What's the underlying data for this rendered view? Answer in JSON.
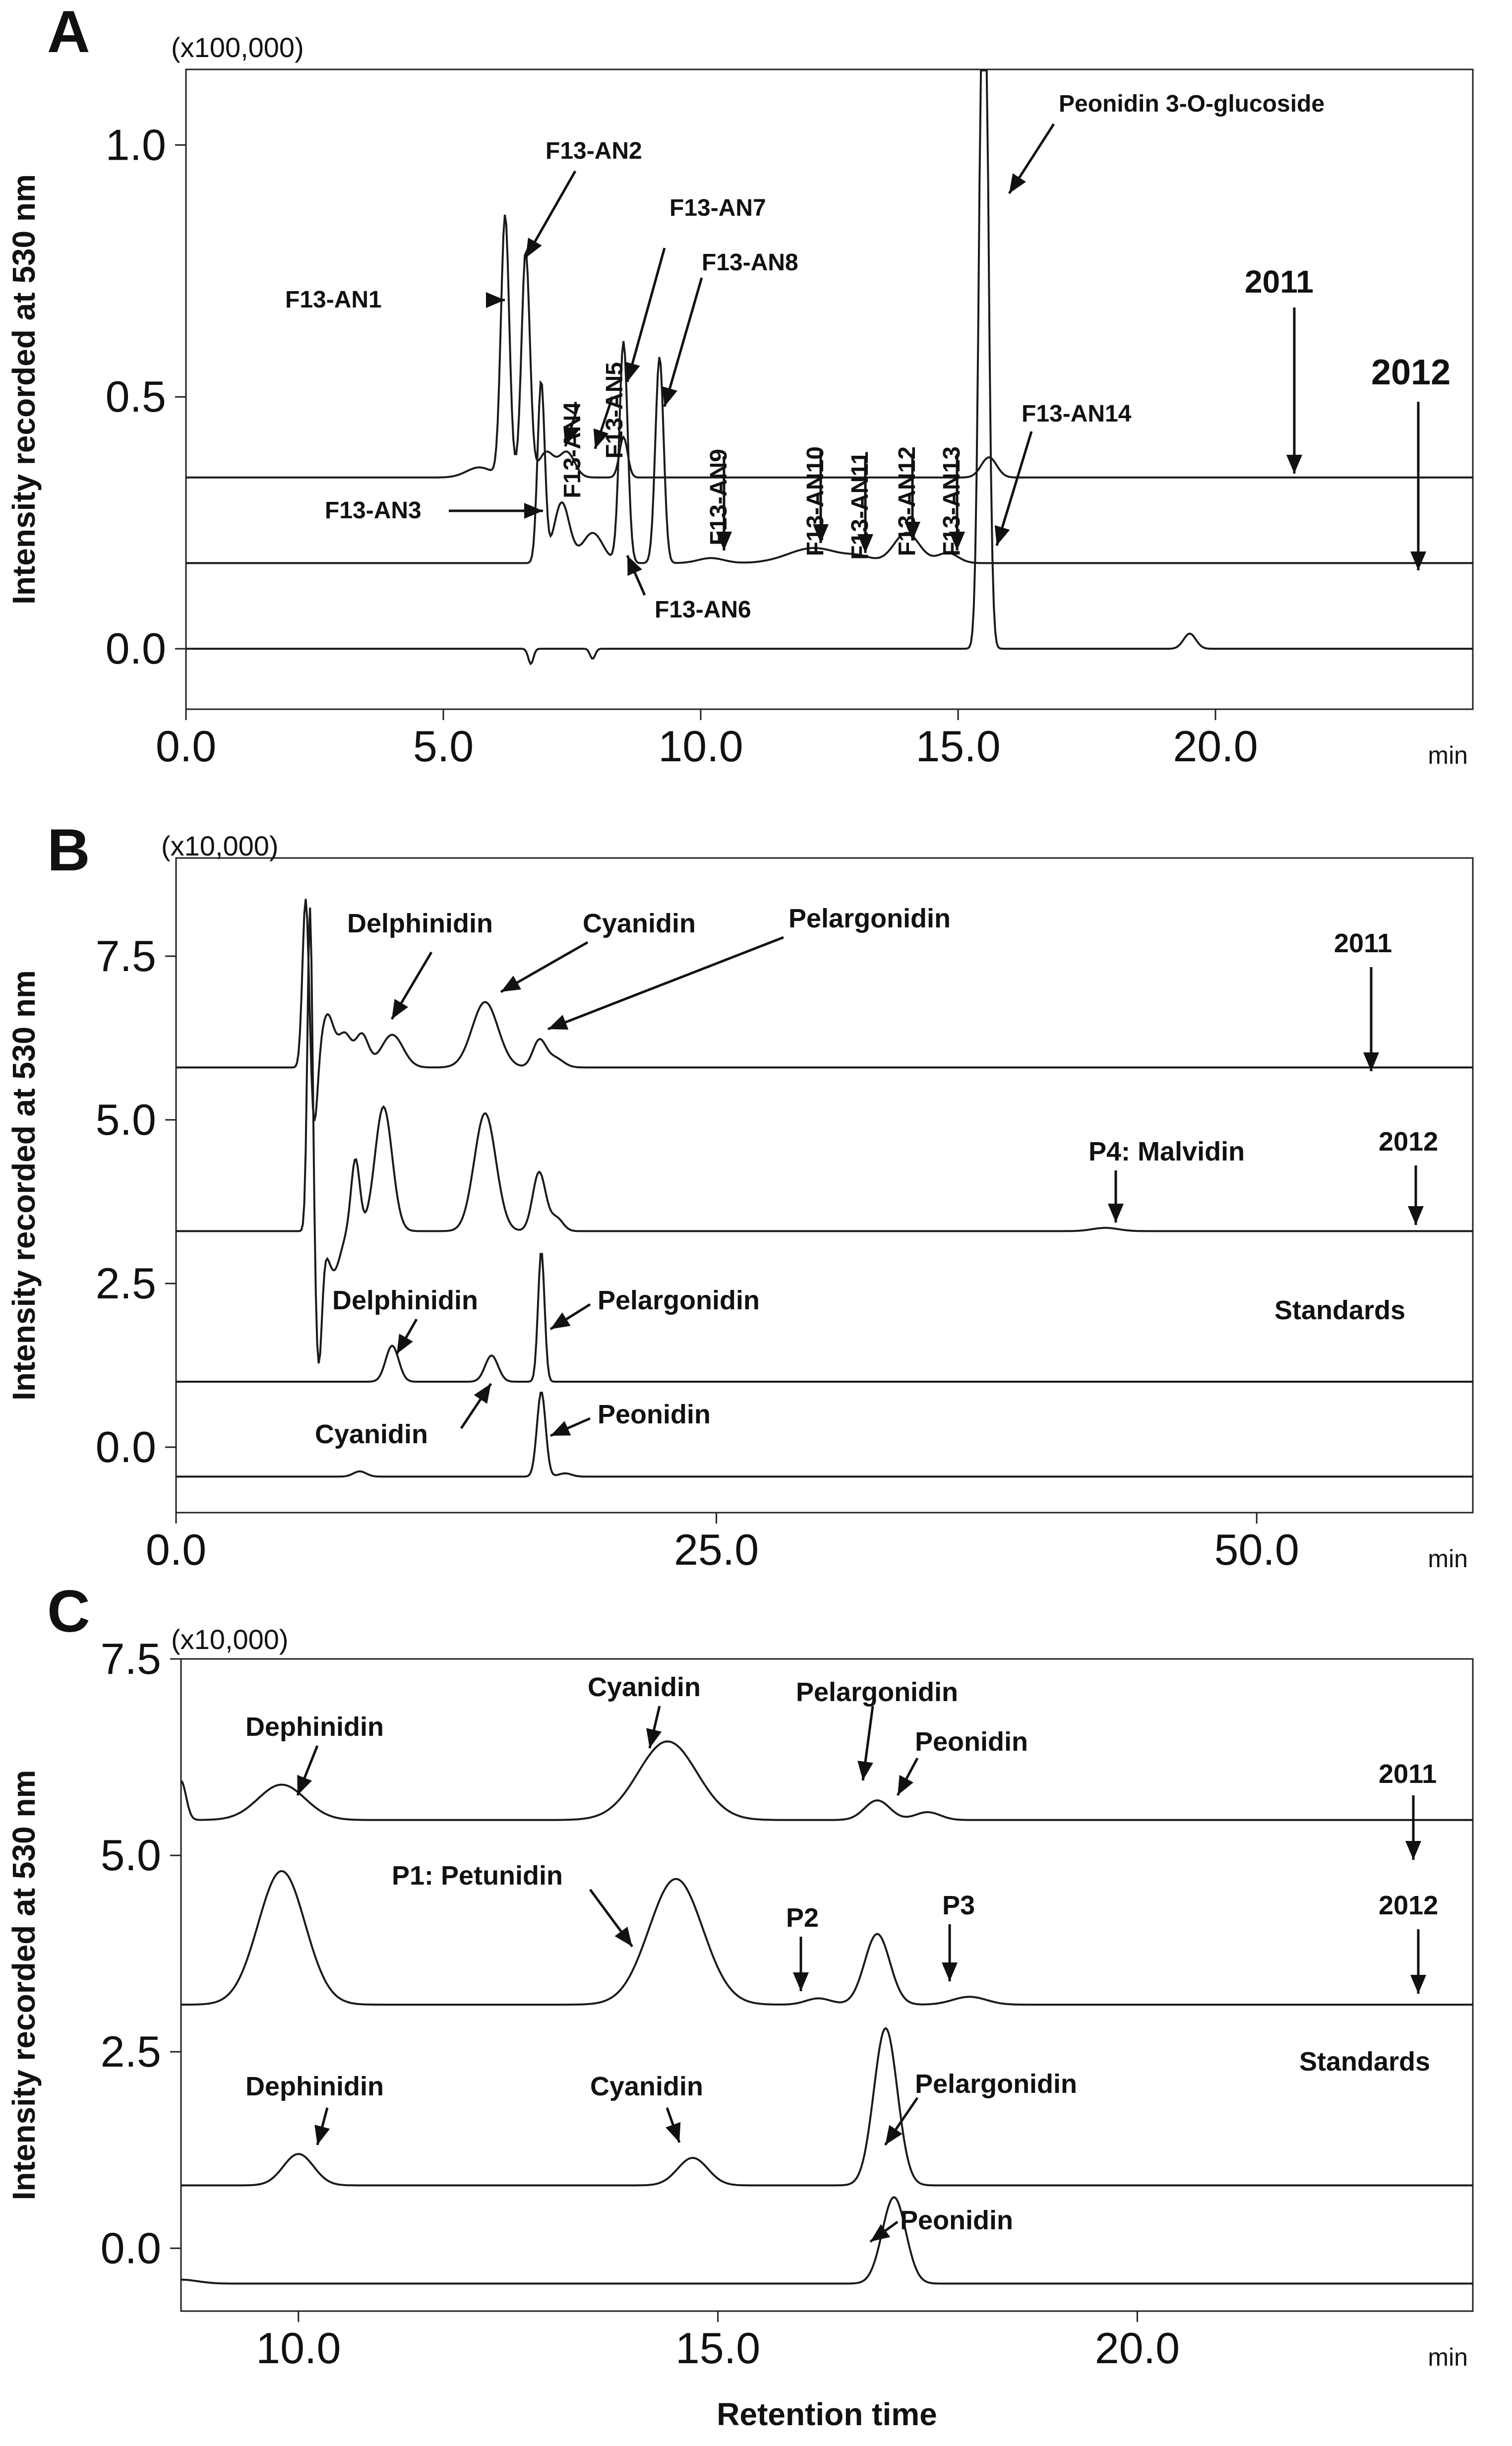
{
  "chart_data": [
    {
      "panel": "A",
      "type": "line",
      "multiplier": "(x100,000)",
      "ylabel": "Intensity recorded at 530 nm",
      "xunit": "min",
      "xlim": [
        0,
        25
      ],
      "ylim": [
        -0.12,
        1.15
      ],
      "xticks": [
        "0.0",
        "5.0",
        "10.0",
        "15.0",
        "20.0"
      ],
      "yticks": [
        "0.0",
        "0.5",
        "1.0"
      ],
      "series": [
        {
          "name": "2011",
          "baseline": 0.34,
          "end_x": 25,
          "peaks": [
            [
              5.7,
              0.02,
              0.25
            ],
            [
              6.2,
              0.52,
              0.08
            ],
            [
              6.6,
              0.45,
              0.08
            ],
            [
              7.0,
              0.05,
              0.15
            ],
            [
              7.4,
              0.05,
              0.15
            ],
            [
              8.5,
              0.08,
              0.08
            ],
            [
              15.6,
              0.04,
              0.15
            ]
          ]
        },
        {
          "name": "2012",
          "baseline": 0.17,
          "end_x": 25,
          "peaks": [
            [
              6.9,
              0.36,
              0.07
            ],
            [
              7.3,
              0.12,
              0.15
            ],
            [
              7.9,
              0.06,
              0.2
            ],
            [
              8.5,
              0.44,
              0.08
            ],
            [
              9.2,
              0.41,
              0.08
            ],
            [
              10.2,
              0.01,
              0.25
            ],
            [
              12.2,
              0.03,
              0.5
            ],
            [
              13.1,
              0.01,
              0.25
            ],
            [
              14.0,
              0.06,
              0.25
            ],
            [
              14.8,
              0.02,
              0.2
            ]
          ]
        },
        {
          "name": "Peonidin 3-O-glucoside",
          "baseline": 0.0,
          "end_x": 25,
          "peaks": [
            [
              6.7,
              -0.03,
              0.05
            ],
            [
              7.9,
              -0.02,
              0.05
            ],
            [
              15.5,
              1.6,
              0.08
            ],
            [
              19.5,
              0.03,
              0.12
            ]
          ]
        }
      ],
      "annotations": [
        "F13-AN1",
        "F13-AN2",
        "F13-AN3",
        "F13-AN4",
        "F13-AN5",
        "F13-AN6",
        "F13-AN7",
        "F13-AN8",
        "F13-AN9",
        "F13-AN10",
        "F13-AN11",
        "F13-AN12",
        "F13-AN13",
        "F13-AN14",
        "Peonidin 3-O-glucoside",
        "2011",
        "2012"
      ]
    },
    {
      "panel": "B",
      "type": "line",
      "multiplier": "(x10,000)",
      "ylabel": "Intensity recorded at 530 nm",
      "xunit": "min",
      "xlim": [
        0,
        60
      ],
      "ylim": [
        -1.0,
        9.0
      ],
      "xticks": [
        "0.0",
        "25.0",
        "50.0"
      ],
      "yticks": [
        "0.0",
        "2.5",
        "5.0",
        "7.5"
      ],
      "series": [
        {
          "name": "2011",
          "baseline": 5.8,
          "end_x": 60,
          "peaks": [
            [
              6.0,
              2.6,
              0.15
            ],
            [
              6.4,
              -1.0,
              0.15
            ],
            [
              7.0,
              0.8,
              0.3
            ],
            [
              7.8,
              0.5,
              0.3
            ],
            [
              8.6,
              0.5,
              0.3
            ],
            [
              10.0,
              0.5,
              0.5
            ],
            [
              14.3,
              1.0,
              0.6
            ],
            [
              16.8,
              0.4,
              0.3
            ],
            [
              17.5,
              0.15,
              0.4
            ]
          ]
        },
        {
          "name": "2012",
          "baseline": 3.3,
          "end_x": 60,
          "peaks": [
            [
              6.2,
              5.0,
              0.12
            ],
            [
              6.6,
              -2.0,
              0.15
            ],
            [
              7.3,
              -0.6,
              0.3
            ],
            [
              8.3,
              1.1,
              0.2
            ],
            [
              9.6,
              1.9,
              0.4
            ],
            [
              14.3,
              1.8,
              0.5
            ],
            [
              16.8,
              0.9,
              0.3
            ],
            [
              17.6,
              0.2,
              0.3
            ],
            [
              43.0,
              0.05,
              0.6
            ]
          ]
        },
        {
          "name": "Standards",
          "baseline": 1.0,
          "end_x": 60,
          "peaks": [
            [
              10.0,
              0.55,
              0.3
            ],
            [
              14.6,
              0.4,
              0.3
            ],
            [
              16.9,
              2.0,
              0.15
            ]
          ]
        },
        {
          "name": "Peonidin",
          "baseline": -0.45,
          "end_x": 60,
          "peaks": [
            [
              8.5,
              0.08,
              0.3
            ],
            [
              16.9,
              1.3,
              0.2
            ],
            [
              18.0,
              0.05,
              0.3
            ]
          ]
        }
      ],
      "annotations": [
        "Delphinidin",
        "Cyanidin",
        "Pelargonidin",
        "2011",
        "P4: Malvidin",
        "2012",
        "Delphinidin",
        "Pelargonidin",
        "Standards",
        "Cyanidin",
        "Peonidin"
      ]
    },
    {
      "panel": "C",
      "type": "line",
      "multiplier": "(x10,000)",
      "ylabel": "Intensity recorded at 530 nm",
      "xlabel": "Retention time",
      "xunit": "min",
      "xlim": [
        8.6,
        24.0
      ],
      "ylim": [
        -0.8,
        7.5
      ],
      "xticks": [
        "10.0",
        "15.0",
        "20.0"
      ],
      "yticks": [
        "0.0",
        "2.5",
        "5.0",
        "7.5"
      ],
      "series": [
        {
          "name": "2011",
          "baseline": 5.45,
          "end_x": 24.0,
          "peaks": [
            [
              8.6,
              0.5,
              0.06
            ],
            [
              9.8,
              0.45,
              0.28
            ],
            [
              14.4,
              1.0,
              0.35
            ],
            [
              16.9,
              0.25,
              0.15
            ],
            [
              17.5,
              0.1,
              0.15
            ]
          ]
        },
        {
          "name": "2012",
          "baseline": 3.1,
          "end_x": 24.0,
          "peaks": [
            [
              9.8,
              1.7,
              0.28
            ],
            [
              14.5,
              1.6,
              0.32
            ],
            [
              16.2,
              0.08,
              0.15
            ],
            [
              16.9,
              0.9,
              0.15
            ],
            [
              18.0,
              0.1,
              0.2
            ]
          ]
        },
        {
          "name": "Standards",
          "baseline": 0.8,
          "end_x": 24.0,
          "peaks": [
            [
              10.0,
              0.4,
              0.18
            ],
            [
              14.7,
              0.35,
              0.18
            ],
            [
              17.0,
              2.0,
              0.14
            ]
          ]
        },
        {
          "name": "Peonidin",
          "baseline": -0.45,
          "end_x": 24.0,
          "peaks": [
            [
              8.6,
              0.05,
              0.2
            ],
            [
              17.1,
              1.1,
              0.14
            ]
          ]
        }
      ],
      "annotations": [
        "Dephinidin",
        "Cyanidin",
        "Pelargonidin",
        "Peonidin",
        "2011",
        "P1: Petunidin",
        "P2",
        "P3",
        "2012",
        "Dephinidin",
        "Cyanidin",
        "Pelargonidin",
        "Standards",
        "Peonidin"
      ]
    }
  ]
}
